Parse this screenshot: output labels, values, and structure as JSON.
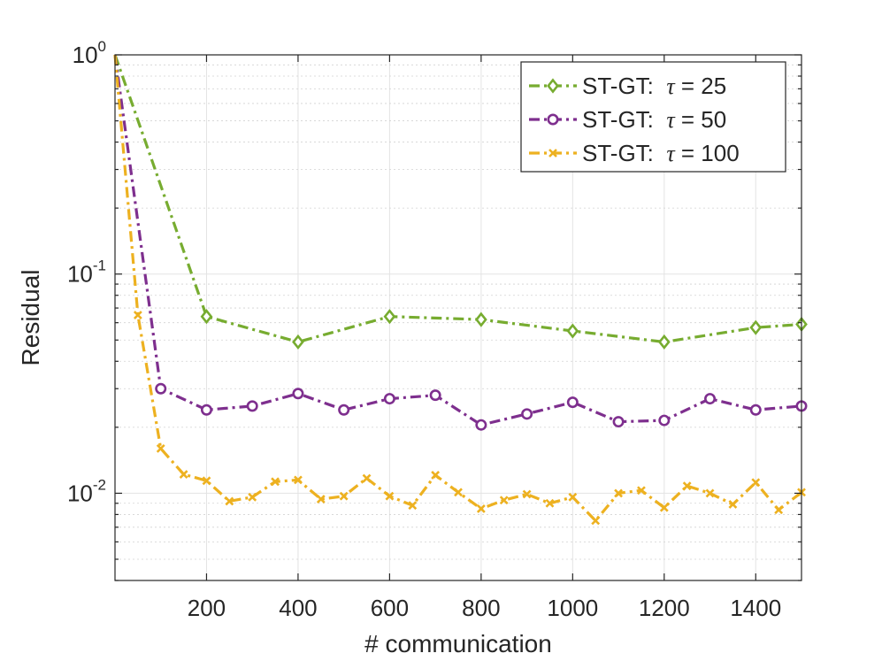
{
  "chart_data": {
    "type": "line",
    "title": "",
    "xlabel": "# communication",
    "ylabel": "Residual",
    "xlim": [
      0,
      1500
    ],
    "ylim": [
      0.004,
      1
    ],
    "yscale": "log",
    "grid": true,
    "legend_position": "top-right",
    "x_ticks": [
      200,
      400,
      600,
      800,
      1000,
      1200,
      1400
    ],
    "x_tick_labels": [
      "200",
      "400",
      "600",
      "800",
      "1000",
      "1200",
      "1400"
    ],
    "y_ticks": [
      0.01,
      0.1,
      1
    ],
    "y_tick_labels": [
      {
        "base": "10",
        "exp": "-2"
      },
      {
        "base": "10",
        "exp": "-1"
      },
      {
        "base": "10",
        "exp": "0"
      }
    ],
    "series": [
      {
        "name": "ST-GT:  τ = 25",
        "legend_prefix": "ST-GT:",
        "legend_symbol": "τ",
        "legend_value": "= 25",
        "color": "#77ac30",
        "marker": "diamond",
        "x": [
          0,
          200,
          400,
          600,
          800,
          1000,
          1200,
          1400,
          1500
        ],
        "y": [
          1.0,
          0.064,
          0.049,
          0.064,
          0.062,
          0.055,
          0.049,
          0.057,
          0.059
        ]
      },
      {
        "name": "ST-GT:  τ = 50",
        "legend_prefix": "ST-GT:",
        "legend_symbol": "τ",
        "legend_value": "= 50",
        "color": "#7e2f8e",
        "marker": "circle",
        "x": [
          0,
          100,
          200,
          300,
          400,
          500,
          600,
          700,
          800,
          900,
          1000,
          1100,
          1200,
          1300,
          1400,
          1500
        ],
        "y": [
          1.0,
          0.03,
          0.024,
          0.025,
          0.0285,
          0.024,
          0.027,
          0.028,
          0.0205,
          0.023,
          0.026,
          0.0212,
          0.0215,
          0.027,
          0.024,
          0.025
        ]
      },
      {
        "name": "ST-GT:  τ = 100",
        "legend_prefix": "ST-GT:",
        "legend_symbol": "τ",
        "legend_value": "= 100",
        "color": "#edb120",
        "marker": "x",
        "x": [
          0,
          50,
          100,
          150,
          200,
          250,
          300,
          350,
          400,
          450,
          500,
          550,
          600,
          650,
          700,
          750,
          800,
          850,
          900,
          950,
          1000,
          1050,
          1100,
          1150,
          1200,
          1250,
          1300,
          1350,
          1400,
          1450,
          1500
        ],
        "y": [
          1.0,
          0.065,
          0.016,
          0.0122,
          0.0114,
          0.0092,
          0.0096,
          0.0113,
          0.0115,
          0.0094,
          0.0097,
          0.0117,
          0.0097,
          0.0088,
          0.0121,
          0.0101,
          0.0085,
          0.0093,
          0.0099,
          0.009,
          0.0096,
          0.0075,
          0.01,
          0.0103,
          0.0086,
          0.0108,
          0.01,
          0.0089,
          0.0112,
          0.0084,
          0.0101
        ]
      }
    ]
  }
}
